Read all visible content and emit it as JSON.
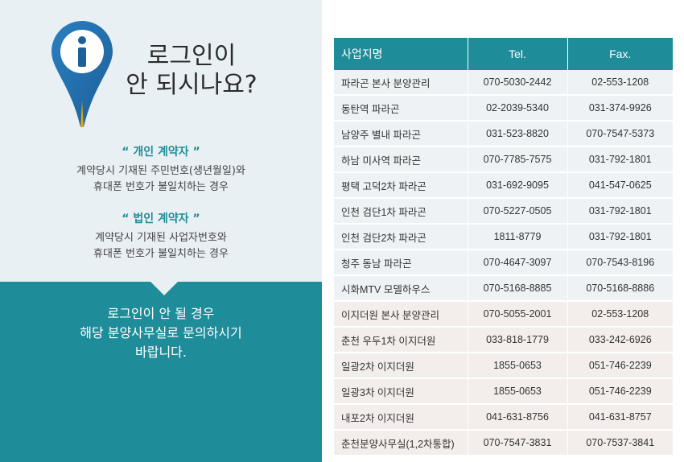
{
  "left": {
    "title_line1": "로그인이",
    "title_line2": "안 되시나요?",
    "personal": {
      "title": "“ 개인 계약자 ”",
      "line1": "계약당시 기재된 주민번호(생년월일)와",
      "line2": "휴대폰 번호가 불일치하는 경우"
    },
    "corporate": {
      "title": "“ 법인 계약자 ”",
      "line1": "계약당시 기재된 사업자번호와",
      "line2": "휴대폰 번호가 불일치하는 경우"
    },
    "contact": {
      "line1": "로그인이 안 될 경우",
      "line2": "해당 분양사무실로 문의하시기",
      "line3": "바랍니다."
    }
  },
  "table": {
    "headers": [
      "사업지명",
      "Tel.",
      "Fax."
    ],
    "rows": [
      {
        "name": "파라곤 본사 분양관리",
        "tel": "070-5030-2442",
        "fax": "02-553-1208"
      },
      {
        "name": "동탄역 파라곤",
        "tel": "02-2039-5340",
        "fax": "031-374-9926"
      },
      {
        "name": "남양주 별내 파라곤",
        "tel": "031-523-8820",
        "fax": "070-7547-5373"
      },
      {
        "name": "하남 미사역 파라곤",
        "tel": "070-7785-7575",
        "fax": "031-792-1801"
      },
      {
        "name": "평택 고덕2차 파라곤",
        "tel": "031-692-9095",
        "fax": "041-547-0625"
      },
      {
        "name": "인천 검단1차 파라곤",
        "tel": "070-5227-0505",
        "fax": "031-792-1801"
      },
      {
        "name": "인천 검단2차 파라곤",
        "tel": "1811-8779",
        "fax": "031-792-1801"
      },
      {
        "name": "청주 동남 파라곤",
        "tel": "070-4647-3097",
        "fax": "070-7543-8196"
      },
      {
        "name": "시화MTV 모델하우스",
        "tel": "070-5168-8885",
        "fax": "070-5168-8886"
      },
      {
        "name": "이지더원 본사 분양관리",
        "tel": "070-5055-2001",
        "fax": "02-553-1208"
      },
      {
        "name": "춘천 우두1차 이지더원",
        "tel": "033-818-1779",
        "fax": "033-242-6926"
      },
      {
        "name": "일광2차 이지더원",
        "tel": "1855-0653",
        "fax": "051-746-2239"
      },
      {
        "name": "일광3차 이지더원",
        "tel": "1855-0653",
        "fax": "051-746-2239"
      },
      {
        "name": "내포2차 이지더원",
        "tel": "041-631-8756",
        "fax": "041-631-8757"
      },
      {
        "name": "춘천분양사무실(1,2차통합)",
        "tel": "070-7547-3831",
        "fax": "070-7537-3841"
      }
    ]
  },
  "colors": {
    "accent": "#1f8c99",
    "left_bg": "#e9f0f4",
    "group1_row": "#eef2f4",
    "group2_row": "#f3eeec"
  },
  "icon": "info-pin-icon"
}
